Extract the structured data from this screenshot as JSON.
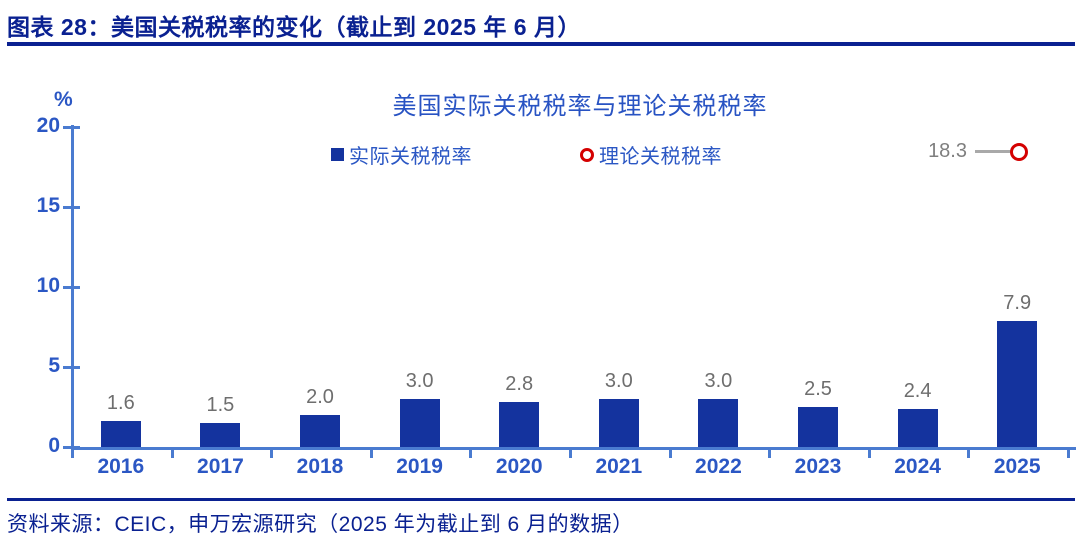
{
  "figure": {
    "title": "图表 28：美国关税税率的变化（截止到 2025 年 6 月）",
    "source": "资料来源：CEIC，申万宏源研究（2025 年为截止到 6 月的数据）"
  },
  "chart_data": {
    "type": "bar",
    "title": "美国实际关税税率与理论关税税率",
    "unit_label": "%",
    "xlabel": "",
    "ylabel": "%",
    "categories": [
      "2016",
      "2017",
      "2018",
      "2019",
      "2020",
      "2021",
      "2022",
      "2023",
      "2024",
      "2025"
    ],
    "series": [
      {
        "name": "实际关税税率",
        "type": "bar",
        "color": "#14339E",
        "values": [
          1.6,
          1.5,
          2.0,
          3.0,
          2.8,
          3.0,
          3.0,
          2.5,
          2.4,
          7.9
        ],
        "value_labels": [
          "1.6",
          "1.5",
          "2.0",
          "3.0",
          "2.8",
          "3.0",
          "3.0",
          "2.5",
          "2.4",
          "7.9"
        ]
      },
      {
        "name": "理论关税税率",
        "type": "point",
        "color": "#D40000",
        "points": [
          {
            "category": "2025",
            "value": 18.3,
            "label": "18.3"
          }
        ]
      }
    ],
    "ylim": [
      0,
      20
    ],
    "yticks": [
      0,
      5,
      10,
      15,
      20
    ],
    "legend_position": "top-center",
    "grid": false
  },
  "colors": {
    "header_navy": "#0A2191",
    "bar_blue": "#14339E",
    "axis_line_blue": "#4A7BD0",
    "label_blue": "#2B57C4",
    "chart_title_blue": "#2853C3",
    "value_gray": "#6E6E6E",
    "annotation_gray": "#7F7F7F",
    "leader_line_gray": "#A9A9A9",
    "marker_red": "#D40000",
    "background": "#FFFFFF"
  }
}
